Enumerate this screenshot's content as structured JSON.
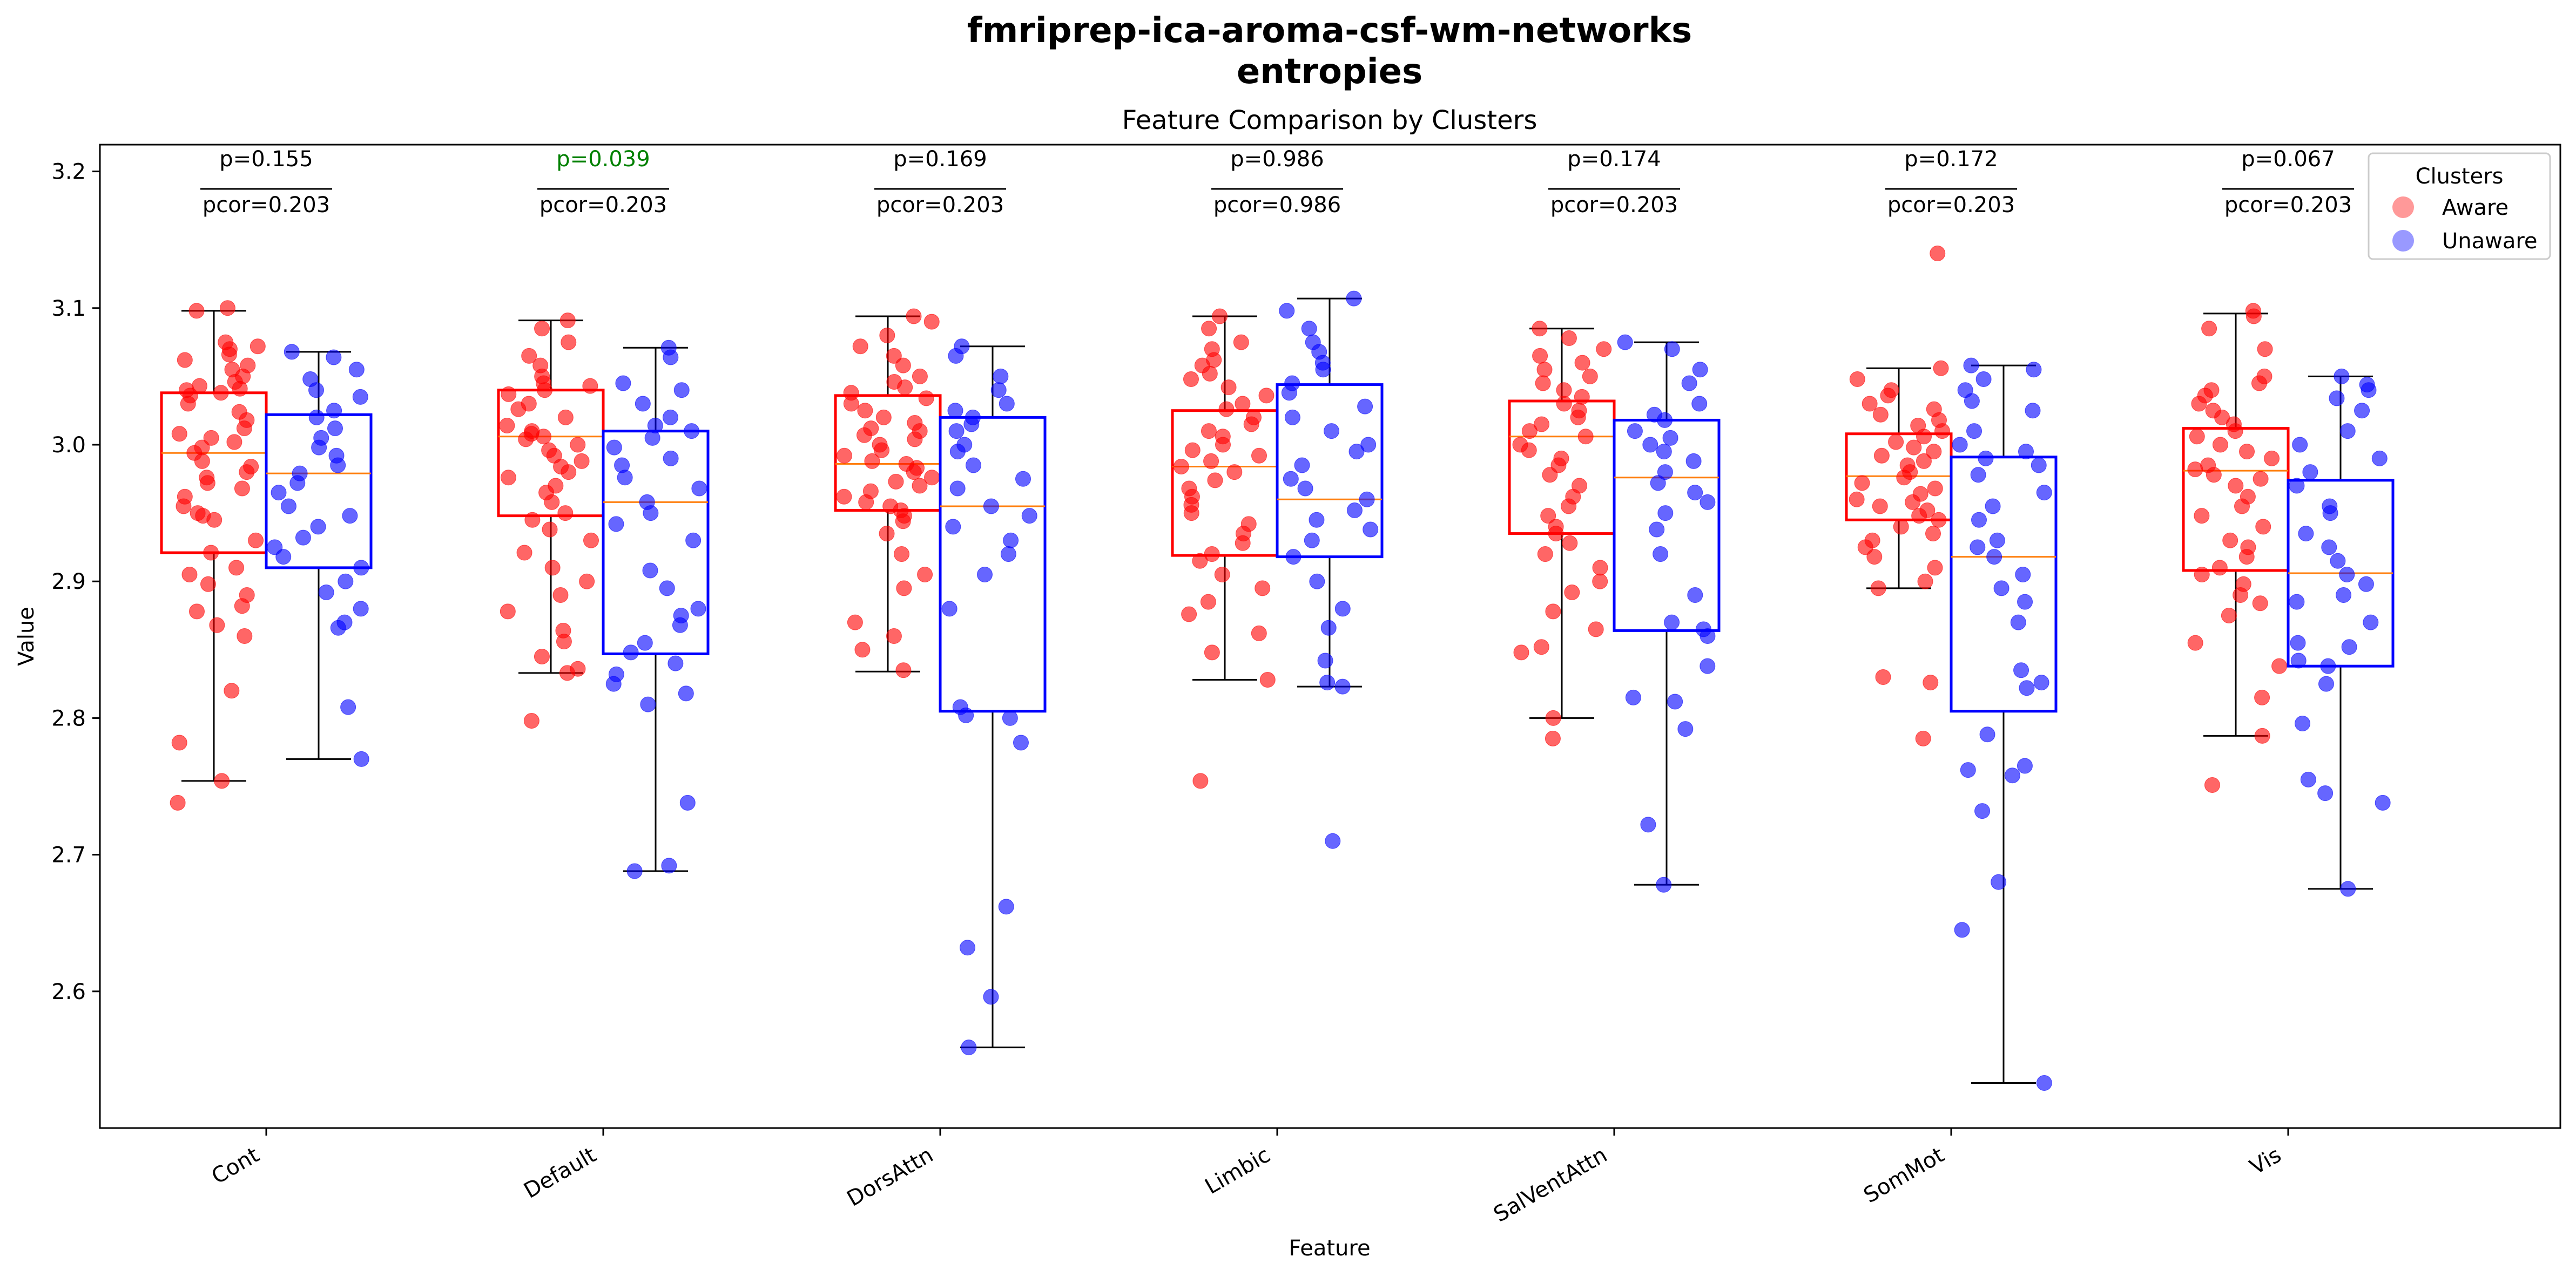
{
  "figure": {
    "suptitle_line1": "fmriprep-ica-aroma-csf-wm-networks",
    "suptitle_line2": "entropies"
  },
  "chart_data": {
    "type": "box",
    "title": "Feature Comparison by Clusters",
    "xlabel": "Feature",
    "ylabel": "Value",
    "ylim": [
      2.5,
      3.22
    ],
    "yticks": [
      "2.6",
      "2.7",
      "2.8",
      "2.9",
      "3.0",
      "3.1",
      "3.2"
    ],
    "grid": false,
    "legend": {
      "title": "Clusters",
      "placement": "top-right",
      "entries": [
        {
          "name": "Aware",
          "color": "#ff0000"
        },
        {
          "name": "Unaware",
          "color": "#0000ff"
        }
      ]
    },
    "significant_color": "#008000",
    "categories": [
      "Cont",
      "Default",
      "DorsAttn",
      "Limbic",
      "SalVentAttn",
      "SomMot",
      "Vis"
    ],
    "tests": [
      {
        "p": "p=0.155",
        "pcor": "pcor=0.203",
        "significant": false
      },
      {
        "p": "p=0.039",
        "pcor": "pcor=0.203",
        "significant": true
      },
      {
        "p": "p=0.169",
        "pcor": "pcor=0.203",
        "significant": false
      },
      {
        "p": "p=0.986",
        "pcor": "pcor=0.986",
        "significant": false
      },
      {
        "p": "p=0.174",
        "pcor": "pcor=0.203",
        "significant": false
      },
      {
        "p": "p=0.172",
        "pcor": "pcor=0.203",
        "significant": false
      },
      {
        "p": "p=0.067",
        "pcor": "pcor=0.203",
        "significant": false
      }
    ],
    "series": [
      {
        "name": "Aware",
        "color": "#ff0000",
        "boxes": [
          {
            "q1": 2.921,
            "median": 2.994,
            "q3": 3.038,
            "whislo": 2.754,
            "whishi": 3.098
          },
          {
            "q1": 2.948,
            "median": 3.006,
            "q3": 3.04,
            "whislo": 2.833,
            "whishi": 3.091
          },
          {
            "q1": 2.952,
            "median": 2.986,
            "q3": 3.036,
            "whislo": 2.834,
            "whishi": 3.094
          },
          {
            "q1": 2.919,
            "median": 2.984,
            "q3": 3.025,
            "whislo": 2.828,
            "whishi": 3.094
          },
          {
            "q1": 2.935,
            "median": 3.006,
            "q3": 3.032,
            "whislo": 2.8,
            "whishi": 3.085
          },
          {
            "q1": 2.945,
            "median": 2.977,
            "q3": 3.008,
            "whislo": 2.895,
            "whishi": 3.056
          },
          {
            "q1": 2.908,
            "median": 2.981,
            "q3": 3.012,
            "whislo": 2.787,
            "whishi": 3.096
          }
        ],
        "points": [
          [
            3.1,
            3.098,
            3.075,
            3.072,
            3.07,
            3.066,
            3.062,
            3.058,
            3.055,
            3.05,
            3.046,
            3.043,
            3.041,
            3.04,
            3.038,
            3.036,
            3.03,
            3.024,
            3.018,
            3.012,
            3.008,
            3.005,
            3.002,
            2.998,
            2.994,
            2.988,
            2.984,
            2.98,
            2.976,
            2.972,
            2.968,
            2.962,
            2.955,
            2.95,
            2.948,
            2.945,
            2.93,
            2.921,
            2.91,
            2.905,
            2.898,
            2.89,
            2.882,
            2.878,
            2.868,
            2.86,
            2.82,
            2.782,
            2.754,
            2.738
          ],
          [
            3.091,
            3.085,
            3.075,
            3.065,
            3.058,
            3.05,
            3.045,
            3.043,
            3.04,
            3.037,
            3.03,
            3.026,
            3.02,
            3.014,
            3.01,
            3.008,
            3.006,
            3.004,
            3.0,
            2.996,
            2.992,
            2.988,
            2.984,
            2.98,
            2.976,
            2.97,
            2.965,
            2.958,
            2.95,
            2.945,
            2.938,
            2.93,
            2.921,
            2.91,
            2.9,
            2.89,
            2.878,
            2.864,
            2.856,
            2.845,
            2.836,
            2.833,
            2.798
          ],
          [
            3.094,
            3.09,
            3.08,
            3.072,
            3.065,
            3.058,
            3.05,
            3.046,
            3.042,
            3.038,
            3.034,
            3.03,
            3.025,
            3.02,
            3.016,
            3.012,
            3.01,
            3.007,
            3.004,
            3.0,
            2.996,
            2.992,
            2.988,
            2.986,
            2.983,
            2.98,
            2.976,
            2.973,
            2.97,
            2.966,
            2.962,
            2.958,
            2.955,
            2.952,
            2.948,
            2.944,
            2.935,
            2.92,
            2.905,
            2.895,
            2.87,
            2.86,
            2.85,
            2.835
          ],
          [
            3.094,
            3.085,
            3.075,
            3.07,
            3.062,
            3.058,
            3.052,
            3.048,
            3.042,
            3.036,
            3.03,
            3.026,
            3.02,
            3.015,
            3.01,
            3.006,
            3.0,
            2.996,
            2.992,
            2.988,
            2.984,
            2.98,
            2.974,
            2.968,
            2.962,
            2.956,
            2.95,
            2.942,
            2.935,
            2.928,
            2.92,
            2.915,
            2.905,
            2.895,
            2.885,
            2.876,
            2.862,
            2.848,
            2.828,
            2.754
          ],
          [
            3.085,
            3.078,
            3.07,
            3.065,
            3.06,
            3.055,
            3.05,
            3.045,
            3.04,
            3.035,
            3.03,
            3.025,
            3.02,
            3.015,
            3.01,
            3.006,
            3.0,
            2.996,
            2.99,
            2.985,
            2.978,
            2.97,
            2.962,
            2.955,
            2.948,
            2.94,
            2.935,
            2.928,
            2.92,
            2.91,
            2.9,
            2.892,
            2.878,
            2.865,
            2.852,
            2.848,
            2.8,
            2.785
          ],
          [
            3.14,
            3.056,
            3.048,
            3.04,
            3.036,
            3.03,
            3.026,
            3.022,
            3.018,
            3.014,
            3.01,
            3.006,
            3.002,
            2.998,
            2.995,
            2.992,
            2.988,
            2.985,
            2.98,
            2.976,
            2.972,
            2.968,
            2.964,
            2.96,
            2.958,
            2.955,
            2.952,
            2.948,
            2.945,
            2.94,
            2.935,
            2.93,
            2.925,
            2.918,
            2.91,
            2.9,
            2.895,
            2.83,
            2.826,
            2.785
          ],
          [
            3.098,
            3.094,
            3.085,
            3.07,
            3.05,
            3.045,
            3.04,
            3.036,
            3.03,
            3.025,
            3.02,
            3.015,
            3.01,
            3.006,
            3.0,
            2.995,
            2.99,
            2.985,
            2.982,
            2.978,
            2.975,
            2.97,
            2.962,
            2.955,
            2.948,
            2.94,
            2.93,
            2.925,
            2.918,
            2.91,
            2.905,
            2.898,
            2.89,
            2.884,
            2.875,
            2.855,
            2.838,
            2.815,
            2.787,
            2.751
          ]
        ]
      },
      {
        "name": "Unaware",
        "color": "#0000ff",
        "boxes": [
          {
            "q1": 2.91,
            "median": 2.979,
            "q3": 3.022,
            "whislo": 2.77,
            "whishi": 3.068
          },
          {
            "q1": 2.847,
            "median": 2.958,
            "q3": 3.01,
            "whislo": 2.688,
            "whishi": 3.071
          },
          {
            "q1": 2.805,
            "median": 2.955,
            "q3": 3.02,
            "whislo": 2.559,
            "whishi": 3.072
          },
          {
            "q1": 2.918,
            "median": 2.96,
            "q3": 3.044,
            "whislo": 2.823,
            "whishi": 3.107
          },
          {
            "q1": 2.864,
            "median": 2.976,
            "q3": 3.018,
            "whislo": 2.678,
            "whishi": 3.075
          },
          {
            "q1": 2.805,
            "median": 2.918,
            "q3": 2.991,
            "whislo": 2.533,
            "whishi": 3.058
          },
          {
            "q1": 2.838,
            "median": 2.906,
            "q3": 2.974,
            "whislo": 2.675,
            "whishi": 3.05
          }
        ],
        "points": [
          [
            3.068,
            3.064,
            3.055,
            3.048,
            3.04,
            3.035,
            3.025,
            3.02,
            3.012,
            3.005,
            2.998,
            2.992,
            2.985,
            2.979,
            2.972,
            2.965,
            2.955,
            2.948,
            2.94,
            2.932,
            2.925,
            2.918,
            2.91,
            2.9,
            2.892,
            2.88,
            2.87,
            2.866,
            2.808,
            2.77
          ],
          [
            3.071,
            3.064,
            3.045,
            3.04,
            3.03,
            3.02,
            3.014,
            3.01,
            3.005,
            2.998,
            2.99,
            2.985,
            2.976,
            2.968,
            2.958,
            2.95,
            2.942,
            2.93,
            2.908,
            2.895,
            2.88,
            2.875,
            2.868,
            2.855,
            2.848,
            2.84,
            2.832,
            2.825,
            2.818,
            2.81,
            2.738,
            2.692,
            2.688
          ],
          [
            3.072,
            3.065,
            3.05,
            3.04,
            3.03,
            3.025,
            3.02,
            3.015,
            3.01,
            3.0,
            2.995,
            2.985,
            2.975,
            2.968,
            2.955,
            2.948,
            2.94,
            2.93,
            2.92,
            2.905,
            2.88,
            2.808,
            2.802,
            2.8,
            2.782,
            2.662,
            2.632,
            2.596,
            2.559
          ],
          [
            3.107,
            3.098,
            3.085,
            3.075,
            3.068,
            3.06,
            3.055,
            3.045,
            3.038,
            3.028,
            3.02,
            3.01,
            3.0,
            2.995,
            2.985,
            2.975,
            2.968,
            2.96,
            2.952,
            2.945,
            2.938,
            2.93,
            2.918,
            2.9,
            2.88,
            2.866,
            2.842,
            2.826,
            2.823,
            2.71
          ],
          [
            3.075,
            3.07,
            3.055,
            3.045,
            3.03,
            3.022,
            3.018,
            3.01,
            3.005,
            3.0,
            2.995,
            2.988,
            2.98,
            2.972,
            2.965,
            2.958,
            2.95,
            2.938,
            2.92,
            2.89,
            2.87,
            2.865,
            2.86,
            2.838,
            2.815,
            2.812,
            2.792,
            2.722,
            2.678
          ],
          [
            3.058,
            3.055,
            3.048,
            3.04,
            3.032,
            3.025,
            3.01,
            3.0,
            2.995,
            2.99,
            2.985,
            2.978,
            2.965,
            2.955,
            2.945,
            2.93,
            2.925,
            2.918,
            2.905,
            2.895,
            2.885,
            2.87,
            2.835,
            2.826,
            2.822,
            2.788,
            2.765,
            2.762,
            2.758,
            2.732,
            2.68,
            2.645,
            2.533
          ],
          [
            3.05,
            3.044,
            3.04,
            3.034,
            3.025,
            3.01,
            3.0,
            2.99,
            2.98,
            2.97,
            2.955,
            2.95,
            2.935,
            2.925,
            2.915,
            2.905,
            2.898,
            2.89,
            2.885,
            2.87,
            2.855,
            2.852,
            2.842,
            2.838,
            2.825,
            2.796,
            2.755,
            2.745,
            2.738,
            2.675
          ]
        ]
      }
    ]
  }
}
